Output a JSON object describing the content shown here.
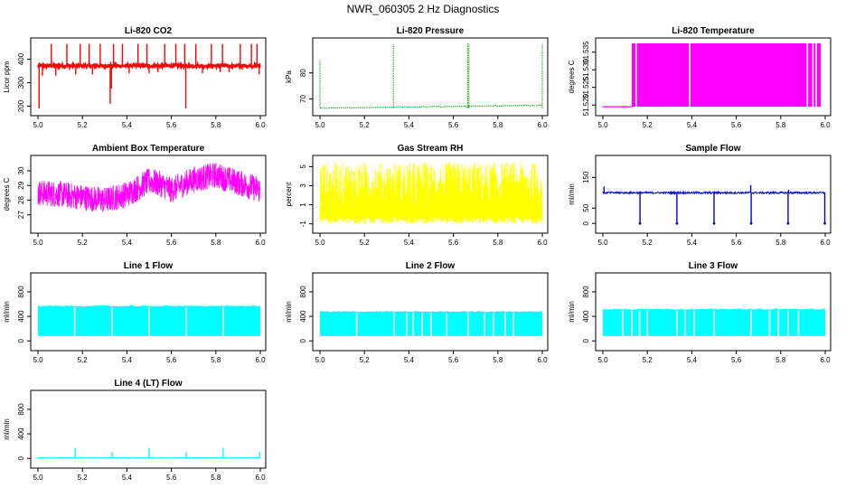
{
  "page": {
    "title": "NWR_060305 2 Hz Diagnostics"
  },
  "chart_data": [
    {
      "type": "line",
      "title": "Li-820 CO2",
      "ylabel": "Licor ppm",
      "xlim": [
        5.0,
        6.0
      ],
      "ylim": [
        175,
        475
      ],
      "xticks": [
        5.0,
        5.2,
        5.4,
        5.6,
        5.8,
        6.0
      ],
      "xtick_labels": [
        "5.0",
        "5.2",
        "5.4",
        "5.6",
        "5.8",
        "6.0"
      ],
      "yticks": [
        200,
        300,
        400
      ],
      "ytick_labels": [
        "200",
        "300",
        "400"
      ],
      "color": "#ff0000",
      "series": [
        {
          "baseline": 372,
          "noise": 6,
          "spikes_up": [
            [
              5.06,
              465
            ],
            [
              5.13,
              465
            ],
            [
              5.19,
              465
            ],
            [
              5.23,
              465
            ],
            [
              5.28,
              465
            ],
            [
              5.34,
              465
            ],
            [
              5.38,
              465
            ],
            [
              5.45,
              465
            ],
            [
              5.49,
              465
            ],
            [
              5.57,
              465
            ],
            [
              5.62,
              465
            ],
            [
              5.66,
              465
            ],
            [
              5.71,
              465
            ],
            [
              5.78,
              465
            ],
            [
              5.83,
              465
            ],
            [
              5.91,
              465
            ],
            [
              5.96,
              465
            ],
            [
              5.985,
              465
            ]
          ],
          "spikes_down": [
            [
              5.005,
              190
            ],
            [
              5.02,
              330
            ],
            [
              5.08,
              330
            ],
            [
              5.17,
              335
            ],
            [
              5.245,
              335
            ],
            [
              5.325,
              210
            ],
            [
              5.33,
              275
            ],
            [
              5.41,
              340
            ],
            [
              5.5,
              340
            ],
            [
              5.54,
              345
            ],
            [
              5.665,
              190
            ],
            [
              5.74,
              340
            ],
            [
              5.82,
              345
            ],
            [
              5.86,
              345
            ],
            [
              5.995,
              335
            ]
          ]
        }
      ]
    },
    {
      "type": "line",
      "title": "Li-820 Pressure",
      "ylabel": "kPa",
      "xlim": [
        5.0,
        6.0
      ],
      "ylim": [
        65,
        92
      ],
      "xticks": [
        5.0,
        5.2,
        5.4,
        5.6,
        5.8,
        6.0
      ],
      "xtick_labels": [
        "5.0",
        "5.2",
        "5.4",
        "5.6",
        "5.8",
        "6.0"
      ],
      "yticks": [
        70,
        80
      ],
      "ytick_labels": [
        "70",
        "80"
      ],
      "color": "#00aa00",
      "series": [
        {
          "segments": [
            [
              5.0,
              5.33,
              66.5,
              66.8
            ],
            [
              5.33,
              5.67,
              66.9,
              67.2
            ],
            [
              5.67,
              6.0,
              67.3,
              67.6
            ]
          ],
          "spikes_up": [
            [
              5.0,
              85
            ],
            [
              5.33,
              91
            ],
            [
              5.665,
              91.5
            ],
            [
              5.67,
              91
            ],
            [
              6.0,
              91
            ]
          ]
        }
      ]
    },
    {
      "type": "area",
      "title": "Li-820 Temperature",
      "ylabel": "degrees C",
      "xlim": [
        5.0,
        6.0
      ],
      "ylim": [
        51.518,
        51.538
      ],
      "xticks": [
        5.0,
        5.2,
        5.4,
        5.6,
        5.8,
        6.0
      ],
      "xtick_labels": [
        "5.0",
        "5.2",
        "5.4",
        "5.6",
        "5.8",
        "6.0"
      ],
      "yticks": [
        51.52,
        51.525,
        51.53,
        51.535
      ],
      "ytick_labels": [
        "51.520",
        "51.525",
        "51.530",
        "51.535"
      ],
      "color": "#ff00ff",
      "series": [
        {
          "low": 51.5195,
          "high": 51.5375,
          "start": 5.13,
          "end": 5.98,
          "gaps": [
            5.15,
            5.39,
            5.92,
            5.945,
            5.96
          ]
        }
      ]
    },
    {
      "type": "line",
      "title": "Ambient Box Temperature",
      "ylabel": "degrees C",
      "xlim": [
        5.0,
        6.0
      ],
      "ylim": [
        26,
        30.8
      ],
      "xticks": [
        5.0,
        5.2,
        5.4,
        5.6,
        5.8,
        6.0
      ],
      "xtick_labels": [
        "5.0",
        "5.2",
        "5.4",
        "5.6",
        "5.8",
        "6.0"
      ],
      "yticks": [
        27,
        28,
        29,
        30
      ],
      "ytick_labels": [
        "27",
        "28",
        "29",
        "30"
      ],
      "color": "#ff00ff",
      "series": [
        {
          "trend": [
            [
              5.0,
              28.5
            ],
            [
              5.1,
              28.4
            ],
            [
              5.2,
              28.2
            ],
            [
              5.3,
              28.0
            ],
            [
              5.4,
              28.4
            ],
            [
              5.5,
              29.3
            ],
            [
              5.55,
              29.1
            ],
            [
              5.6,
              28.7
            ],
            [
              5.7,
              29.4
            ],
            [
              5.8,
              29.7
            ],
            [
              5.9,
              29.2
            ],
            [
              6.0,
              28.7
            ]
          ],
          "noise": 0.9
        }
      ]
    },
    {
      "type": "line",
      "title": "Gas Stream RH",
      "ylabel": "percent",
      "xlim": [
        5.0,
        6.0
      ],
      "ylim": [
        -1.6,
        5.8
      ],
      "xticks": [
        5.0,
        5.2,
        5.4,
        5.6,
        5.8,
        6.0
      ],
      "xtick_labels": [
        "5.0",
        "5.2",
        "5.4",
        "5.6",
        "5.8",
        "6.0"
      ],
      "yticks": [
        -1,
        1,
        3,
        5
      ],
      "ytick_labels": [
        "-1",
        "1",
        "3",
        "5"
      ],
      "color": "#ffff00",
      "series": [
        {
          "low": -1.0,
          "high": 5.5,
          "noise": 1
        }
      ]
    },
    {
      "type": "line",
      "title": "Sample Flow",
      "ylabel": "ml/min",
      "xlim": [
        5.0,
        6.0
      ],
      "ylim": [
        -20,
        210
      ],
      "xticks": [
        5.0,
        5.2,
        5.4,
        5.6,
        5.8,
        6.0
      ],
      "xtick_labels": [
        "5.0",
        "5.2",
        "5.4",
        "5.6",
        "5.8",
        "6.0"
      ],
      "yticks": [
        0,
        50,
        150
      ],
      "ytick_labels": [
        "0",
        "50",
        "150"
      ],
      "color": "#0000dd",
      "series": [
        {
          "baseline": 100,
          "noise": 3,
          "spikes_up": [
            [
              5.005,
              120
            ],
            [
              5.665,
              125
            ],
            [
              5.835,
              110
            ]
          ],
          "spikes_down": [
            [
              5.167,
              0
            ],
            [
              5.333,
              0
            ],
            [
              5.5,
              0
            ],
            [
              5.667,
              0
            ],
            [
              5.833,
              0
            ],
            [
              5.998,
              0
            ]
          ]
        }
      ]
    },
    {
      "type": "area",
      "title": "Line 1 Flow",
      "ylabel": "ml/min",
      "xlim": [
        5.0,
        6.0
      ],
      "ylim": [
        -100,
        1050
      ],
      "xticks": [
        5.0,
        5.2,
        5.4,
        5.6,
        5.8,
        6.0
      ],
      "xtick_labels": [
        "5.0",
        "5.2",
        "5.4",
        "5.6",
        "5.8",
        "6.0"
      ],
      "yticks": [
        0,
        400,
        800
      ],
      "ytick_labels": [
        "0",
        "400",
        "800"
      ],
      "color": "#00ffff",
      "series": [
        {
          "low": 80,
          "high": 560,
          "start": 5.0,
          "end": 6.0,
          "gaps": [
            5.165,
            5.333,
            5.5,
            5.667,
            5.833
          ]
        }
      ]
    },
    {
      "type": "area",
      "title": "Line 2 Flow",
      "ylabel": "ml/min",
      "xlim": [
        5.0,
        6.0
      ],
      "ylim": [
        -100,
        1050
      ],
      "xticks": [
        5.0,
        5.2,
        5.4,
        5.6,
        5.8,
        6.0
      ],
      "xtick_labels": [
        "5.0",
        "5.2",
        "5.4",
        "5.6",
        "5.8",
        "6.0"
      ],
      "yticks": [
        0,
        400,
        800
      ],
      "ytick_labels": [
        "0",
        "400",
        "800"
      ],
      "color": "#00ffff",
      "series": [
        {
          "low": 80,
          "high": 470,
          "start": 5.0,
          "end": 6.0,
          "gaps": [
            5.165,
            5.333,
            5.39,
            5.42,
            5.46,
            5.5,
            5.57,
            5.667,
            5.74,
            5.78,
            5.833,
            5.87
          ]
        }
      ]
    },
    {
      "type": "area",
      "title": "Line 3 Flow",
      "ylabel": "ml/min",
      "xlim": [
        5.0,
        6.0
      ],
      "ylim": [
        -100,
        1050
      ],
      "xticks": [
        5.0,
        5.2,
        5.4,
        5.6,
        5.8,
        6.0
      ],
      "xtick_labels": [
        "5.0",
        "5.2",
        "5.4",
        "5.6",
        "5.8",
        "6.0"
      ],
      "yticks": [
        0,
        400,
        800
      ],
      "ytick_labels": [
        "0",
        "400",
        "800"
      ],
      "color": "#00ffff",
      "series": [
        {
          "low": 80,
          "high": 510,
          "start": 5.0,
          "end": 6.0,
          "gaps": [
            5.09,
            5.13,
            5.165,
            5.2,
            5.333,
            5.37,
            5.41,
            5.5,
            5.667,
            5.75,
            5.79,
            5.833,
            5.88
          ]
        }
      ]
    },
    {
      "type": "line",
      "title": "Line 4 (LT) Flow",
      "ylabel": "ml/min",
      "xlim": [
        5.0,
        6.0
      ],
      "ylim": [
        -100,
        1050
      ],
      "xticks": [
        5.0,
        5.2,
        5.4,
        5.6,
        5.8,
        6.0
      ],
      "xtick_labels": [
        "5.0",
        "5.2",
        "5.4",
        "5.6",
        "5.8",
        "6.0"
      ],
      "yticks": [
        0,
        400,
        800
      ],
      "ytick_labels": [
        "0",
        "400",
        "800"
      ],
      "color": "#00ffff",
      "series": [
        {
          "baseline": 10,
          "noise": 4,
          "spikes_up": [
            [
              5.167,
              170
            ],
            [
              5.333,
              100
            ],
            [
              5.5,
              170
            ],
            [
              5.667,
              100
            ],
            [
              5.833,
              170
            ],
            [
              5.998,
              110
            ]
          ]
        }
      ]
    }
  ]
}
